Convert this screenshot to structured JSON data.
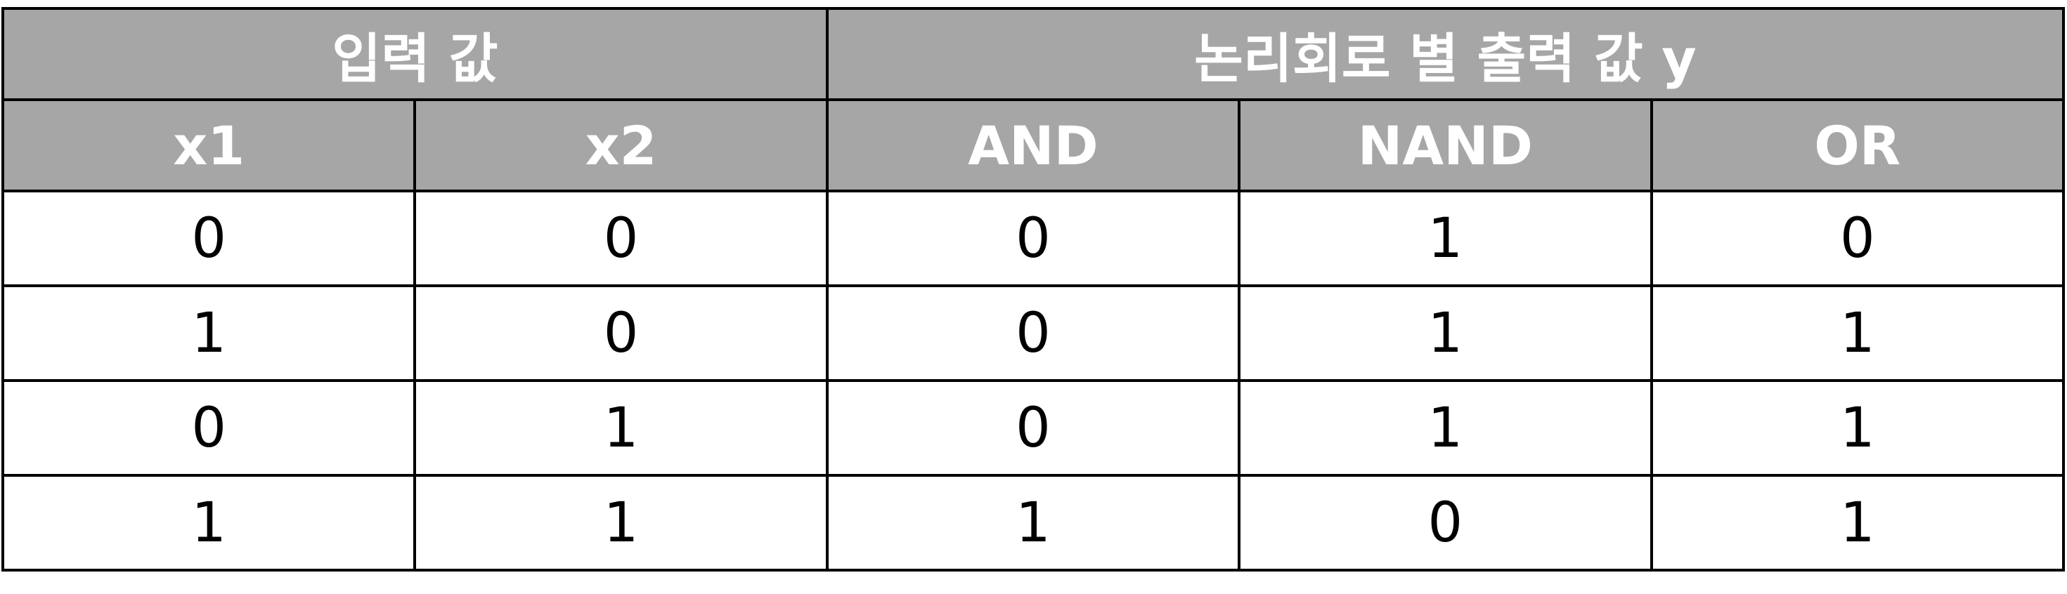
{
  "table": {
    "group_headers": {
      "inputs": "입력 값",
      "outputs": "논리회로 별 출력 값 y"
    },
    "columns": [
      "x1",
      "x2",
      "AND",
      "NAND",
      "OR"
    ],
    "rows": [
      [
        "0",
        "0",
        "0",
        "1",
        "0"
      ],
      [
        "1",
        "0",
        "0",
        "1",
        "1"
      ],
      [
        "0",
        "1",
        "0",
        "1",
        "1"
      ],
      [
        "1",
        "1",
        "1",
        "0",
        "1"
      ]
    ],
    "colors": {
      "header_background": "#a6a6a6",
      "header_text": "#ffffff",
      "border": "#000000",
      "cell_background": "#ffffff"
    }
  }
}
